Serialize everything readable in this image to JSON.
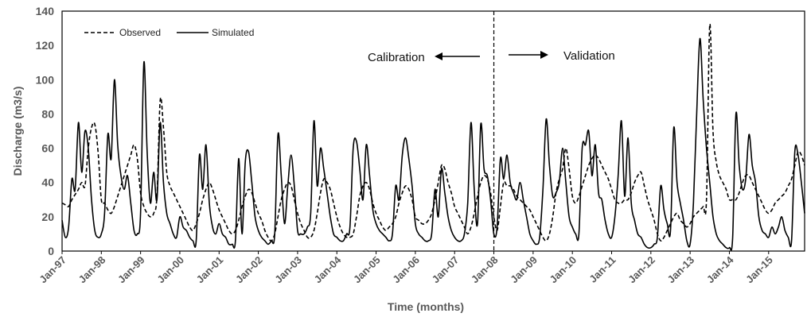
{
  "chart_data": {
    "type": "line",
    "title": "",
    "xlabel": "Time (months)",
    "ylabel": "Discharge (m3/s)",
    "ylim": [
      0,
      140
    ],
    "yticks": [
      0,
      20,
      40,
      60,
      80,
      100,
      120,
      140
    ],
    "x_tick_labels": [
      "Jan-97",
      "Jan-98",
      "Jan-99",
      "Jan-00",
      "Jan-01",
      "Jan-02",
      "Jan-03",
      "Jan-04",
      "Jan-05",
      "Jan-06",
      "Jan-07",
      "Jan-08",
      "Jan-09",
      "Jan-10",
      "Jan-11",
      "Jan-12",
      "Jan-13",
      "Jan-14",
      "Jan-15"
    ],
    "start": "Jan-97",
    "end": "Dec-15",
    "grid": false,
    "legend_position": "top-left",
    "split_at": "Jan-08",
    "annotations": {
      "calibration": "Calibration",
      "validation": "Validation"
    },
    "series": [
      {
        "name": "Observed",
        "style": "dashed",
        "color": "#000000",
        "values": [
          28,
          27,
          26,
          30,
          33,
          36,
          40,
          38,
          60,
          72,
          74,
          58,
          30,
          28,
          24,
          22,
          26,
          32,
          38,
          44,
          50,
          56,
          62,
          54,
          34,
          26,
          22,
          20,
          22,
          32,
          88,
          72,
          46,
          38,
          34,
          30,
          26,
          22,
          18,
          14,
          12,
          16,
          22,
          30,
          36,
          40,
          36,
          30,
          24,
          20,
          16,
          12,
          10,
          12,
          18,
          26,
          32,
          36,
          34,
          28,
          22,
          18,
          12,
          8,
          6,
          10,
          20,
          30,
          36,
          40,
          38,
          30,
          22,
          16,
          12,
          8,
          8,
          12,
          22,
          34,
          42,
          40,
          36,
          28,
          20,
          14,
          10,
          8,
          8,
          10,
          20,
          32,
          38,
          40,
          36,
          28,
          22,
          18,
          14,
          12,
          14,
          16,
          20,
          28,
          34,
          38,
          36,
          30,
          20,
          18,
          16,
          16,
          18,
          22,
          30,
          40,
          50,
          48,
          40,
          34,
          26,
          22,
          18,
          14,
          10,
          14,
          22,
          32,
          40,
          44,
          42,
          34,
          20,
          12,
          26,
          40,
          38,
          38,
          36,
          32,
          30,
          28,
          26,
          24,
          20,
          16,
          12,
          8,
          6,
          10,
          20,
          34,
          42,
          48,
          60,
          48,
          32,
          28,
          32,
          38,
          44,
          50,
          54,
          56,
          54,
          50,
          46,
          42,
          36,
          30,
          28,
          28,
          30,
          30,
          34,
          40,
          44,
          46,
          38,
          30,
          24,
          18,
          10,
          6,
          8,
          12,
          16,
          20,
          22,
          18,
          16,
          14,
          16,
          20,
          22,
          24,
          26,
          30,
          132,
          70,
          52,
          44,
          40,
          36,
          30,
          30,
          30,
          34,
          40,
          44,
          44,
          40,
          36,
          32,
          28,
          24,
          22,
          24,
          28,
          30,
          32,
          34,
          38,
          42,
          50,
          58,
          56,
          50
        ]
      },
      {
        "name": "Simulated",
        "style": "solid",
        "color": "#000000",
        "values": [
          18,
          8,
          14,
          42,
          36,
          75,
          46,
          70,
          60,
          30,
          12,
          8,
          10,
          22,
          68,
          54,
          100,
          62,
          44,
          36,
          44,
          28,
          12,
          10,
          22,
          110,
          58,
          28,
          46,
          30,
          75,
          40,
          22,
          16,
          10,
          8,
          20,
          14,
          12,
          8,
          6,
          6,
          56,
          36,
          62,
          28,
          14,
          10,
          16,
          10,
          8,
          4,
          4,
          6,
          54,
          10,
          52,
          58,
          40,
          20,
          12,
          8,
          6,
          4,
          6,
          10,
          68,
          44,
          16,
          38,
          56,
          38,
          12,
          10,
          10,
          14,
          22,
          76,
          38,
          60,
          48,
          34,
          20,
          10,
          8,
          6,
          6,
          10,
          14,
          60,
          64,
          48,
          30,
          62,
          44,
          24,
          16,
          12,
          10,
          8,
          6,
          10,
          38,
          30,
          56,
          66,
          54,
          38,
          16,
          10,
          8,
          6,
          6,
          10,
          36,
          20,
          48,
          34,
          20,
          12,
          8,
          6,
          6,
          10,
          28,
          75,
          36,
          16,
          74,
          48,
          44,
          30,
          10,
          14,
          54,
          42,
          56,
          40,
          34,
          30,
          40,
          30,
          20,
          10,
          6,
          4,
          8,
          36,
          77,
          50,
          32,
          34,
          40,
          60,
          40,
          20,
          14,
          10,
          10,
          60,
          62,
          70,
          44,
          62,
          34,
          30,
          18,
          10,
          8,
          20,
          44,
          76,
          32,
          66,
          28,
          18,
          10,
          8,
          4,
          2,
          2,
          4,
          8,
          38,
          24,
          16,
          12,
          72,
          40,
          28,
          18,
          6,
          4,
          28,
          80,
          124,
          88,
          60,
          40,
          20,
          10,
          6,
          4,
          2,
          2,
          8,
          80,
          50,
          36,
          42,
          68,
          50,
          40,
          20,
          12,
          10,
          8,
          14,
          10,
          14,
          20,
          12,
          8,
          6,
          58,
          56,
          40,
          22
        ]
      }
    ]
  }
}
